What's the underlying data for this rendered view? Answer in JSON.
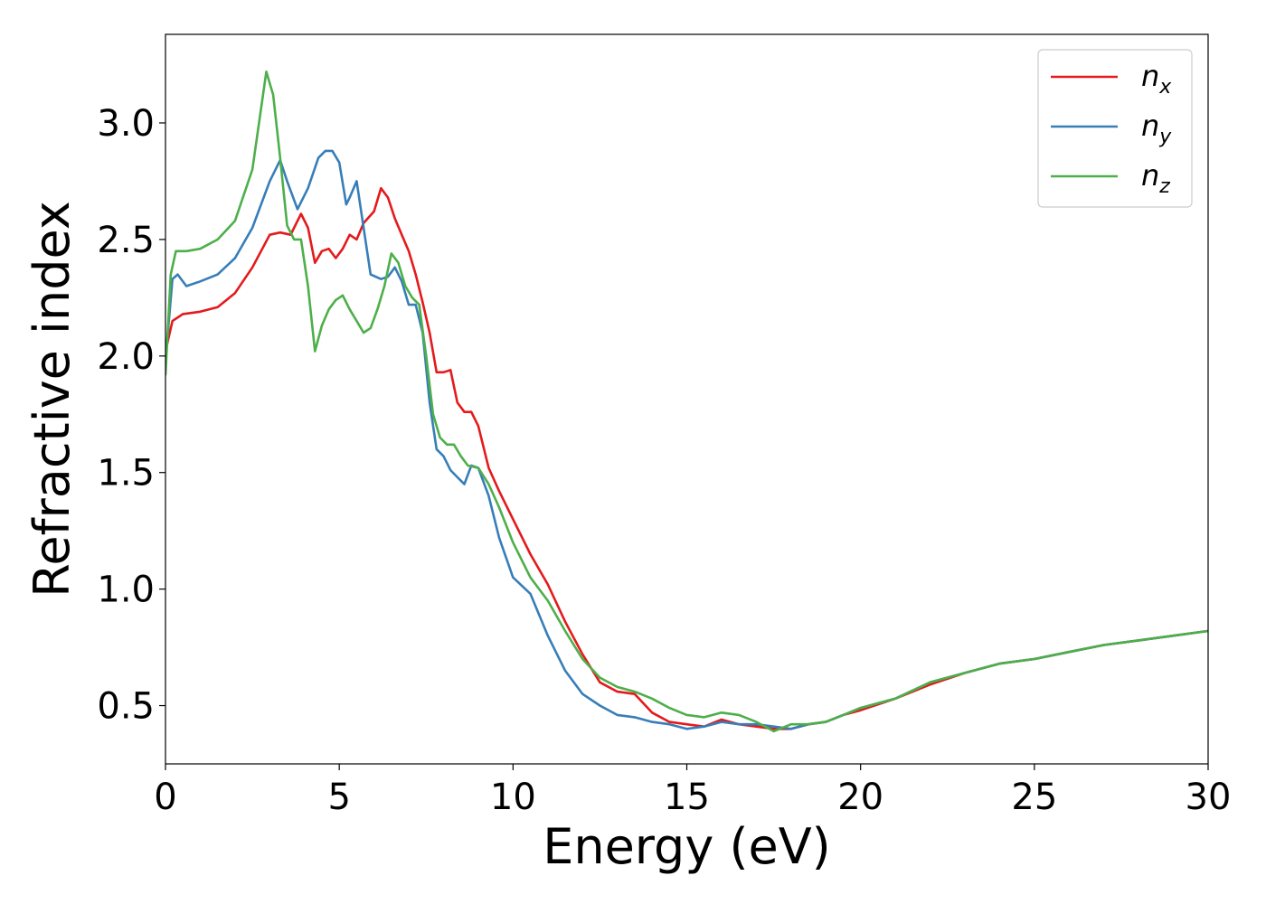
{
  "chart_data": {
    "type": "line",
    "title": "",
    "xlabel": "Energy (eV)",
    "ylabel": "Refractive index",
    "xlim": [
      0,
      30
    ],
    "ylim": [
      0.25,
      3.38
    ],
    "xticks": [
      0,
      5,
      10,
      15,
      20,
      25,
      30
    ],
    "xtick_labels": [
      "0",
      "5",
      "10",
      "15",
      "20",
      "25",
      "30"
    ],
    "yticks": [
      0.5,
      1.0,
      1.5,
      2.0,
      2.5,
      3.0
    ],
    "ytick_labels": [
      "0.5",
      "1.0",
      "1.5",
      "2.0",
      "2.5",
      "3.0"
    ],
    "grid": false,
    "legend_position": "top-right",
    "series": [
      {
        "name": "n",
        "subscript": "x",
        "color": "#e41a1c",
        "x": [
          0,
          0.2,
          0.5,
          1,
          1.5,
          2,
          2.5,
          3,
          3.3,
          3.6,
          3.9,
          4.1,
          4.3,
          4.5,
          4.7,
          4.9,
          5.1,
          5.3,
          5.5,
          5.7,
          6,
          6.2,
          6.4,
          6.6,
          6.8,
          7,
          7.2,
          7.4,
          7.6,
          7.8,
          8,
          8.2,
          8.4,
          8.6,
          8.8,
          9,
          9.3,
          9.6,
          10,
          10.5,
          11,
          11.5,
          12,
          12.5,
          13,
          13.5,
          14,
          14.5,
          15,
          15.5,
          16,
          16.5,
          17,
          17.5,
          18,
          18.5,
          19,
          19.5,
          20,
          21,
          22,
          23,
          24,
          25,
          26,
          27,
          28,
          29,
          30
        ],
        "y": [
          2.02,
          2.15,
          2.18,
          2.19,
          2.21,
          2.27,
          2.38,
          2.52,
          2.53,
          2.52,
          2.61,
          2.55,
          2.4,
          2.45,
          2.46,
          2.42,
          2.46,
          2.52,
          2.5,
          2.57,
          2.62,
          2.72,
          2.68,
          2.59,
          2.52,
          2.45,
          2.35,
          2.23,
          2.1,
          1.93,
          1.93,
          1.94,
          1.8,
          1.76,
          1.76,
          1.7,
          1.52,
          1.42,
          1.3,
          1.15,
          1.02,
          0.86,
          0.72,
          0.6,
          0.56,
          0.55,
          0.47,
          0.43,
          0.42,
          0.41,
          0.44,
          0.42,
          0.41,
          0.4,
          0.4,
          0.42,
          0.43,
          0.46,
          0.48,
          0.53,
          0.59,
          0.64,
          0.68,
          0.7,
          0.73,
          0.76,
          0.78,
          0.8,
          0.82
        ]
      },
      {
        "name": "n",
        "subscript": "y",
        "color": "#377eb8",
        "x": [
          0,
          0.2,
          0.35,
          0.6,
          1,
          1.5,
          2,
          2.5,
          3,
          3.3,
          3.5,
          3.8,
          4.1,
          4.4,
          4.6,
          4.8,
          5,
          5.2,
          5.3,
          5.5,
          5.7,
          5.9,
          6.2,
          6.4,
          6.6,
          6.8,
          7,
          7.2,
          7.4,
          7.6,
          7.8,
          8,
          8.2,
          8.4,
          8.6,
          8.8,
          9,
          9.3,
          9.6,
          10,
          10.5,
          11,
          11.5,
          12,
          12.5,
          13,
          13.5,
          14,
          14.5,
          15,
          15.5,
          16,
          16.5,
          17,
          17.5,
          18,
          18.5,
          19,
          19.5,
          20,
          21,
          22,
          23,
          24,
          25,
          26,
          27,
          28,
          29,
          30
        ],
        "y": [
          1.98,
          2.33,
          2.35,
          2.3,
          2.32,
          2.35,
          2.42,
          2.55,
          2.75,
          2.84,
          2.75,
          2.63,
          2.72,
          2.85,
          2.88,
          2.88,
          2.83,
          2.65,
          2.68,
          2.75,
          2.55,
          2.35,
          2.33,
          2.34,
          2.38,
          2.32,
          2.22,
          2.22,
          2.1,
          1.8,
          1.6,
          1.57,
          1.51,
          1.48,
          1.45,
          1.53,
          1.52,
          1.4,
          1.22,
          1.05,
          0.98,
          0.8,
          0.65,
          0.55,
          0.5,
          0.46,
          0.45,
          0.43,
          0.42,
          0.4,
          0.41,
          0.43,
          0.42,
          0.42,
          0.41,
          0.4,
          0.42,
          0.43,
          0.46,
          0.49,
          0.53,
          0.6,
          0.64,
          0.68,
          0.7,
          0.73,
          0.76,
          0.78,
          0.8,
          0.82
        ]
      },
      {
        "name": "n",
        "subscript": "z",
        "color": "#4daf4a",
        "x": [
          0,
          0.15,
          0.3,
          0.6,
          1,
          1.5,
          2,
          2.5,
          2.9,
          3.1,
          3.3,
          3.5,
          3.7,
          3.9,
          4.1,
          4.3,
          4.5,
          4.7,
          4.9,
          5.1,
          5.3,
          5.5,
          5.7,
          5.9,
          6.1,
          6.3,
          6.5,
          6.7,
          6.9,
          7.1,
          7.3,
          7.5,
          7.7,
          7.9,
          8.1,
          8.3,
          8.5,
          8.7,
          9,
          9.3,
          9.6,
          10,
          10.5,
          11,
          11.5,
          12,
          12.5,
          13,
          13.5,
          14,
          14.5,
          15,
          15.5,
          16,
          16.5,
          17,
          17.5,
          18,
          18.5,
          19,
          19.5,
          20,
          21,
          22,
          23,
          24,
          25,
          26,
          27,
          28,
          29,
          30
        ],
        "y": [
          1.92,
          2.35,
          2.45,
          2.45,
          2.46,
          2.5,
          2.58,
          2.8,
          3.22,
          3.12,
          2.85,
          2.56,
          2.5,
          2.5,
          2.3,
          2.02,
          2.13,
          2.2,
          2.24,
          2.26,
          2.2,
          2.15,
          2.1,
          2.12,
          2.2,
          2.3,
          2.44,
          2.4,
          2.3,
          2.25,
          2.22,
          2.0,
          1.75,
          1.65,
          1.62,
          1.62,
          1.57,
          1.53,
          1.52,
          1.45,
          1.35,
          1.2,
          1.05,
          0.95,
          0.82,
          0.7,
          0.62,
          0.58,
          0.56,
          0.53,
          0.49,
          0.46,
          0.45,
          0.47,
          0.46,
          0.43,
          0.39,
          0.42,
          0.42,
          0.43,
          0.46,
          0.49,
          0.53,
          0.6,
          0.64,
          0.68,
          0.7,
          0.73,
          0.76,
          0.78,
          0.8,
          0.82
        ]
      }
    ]
  }
}
